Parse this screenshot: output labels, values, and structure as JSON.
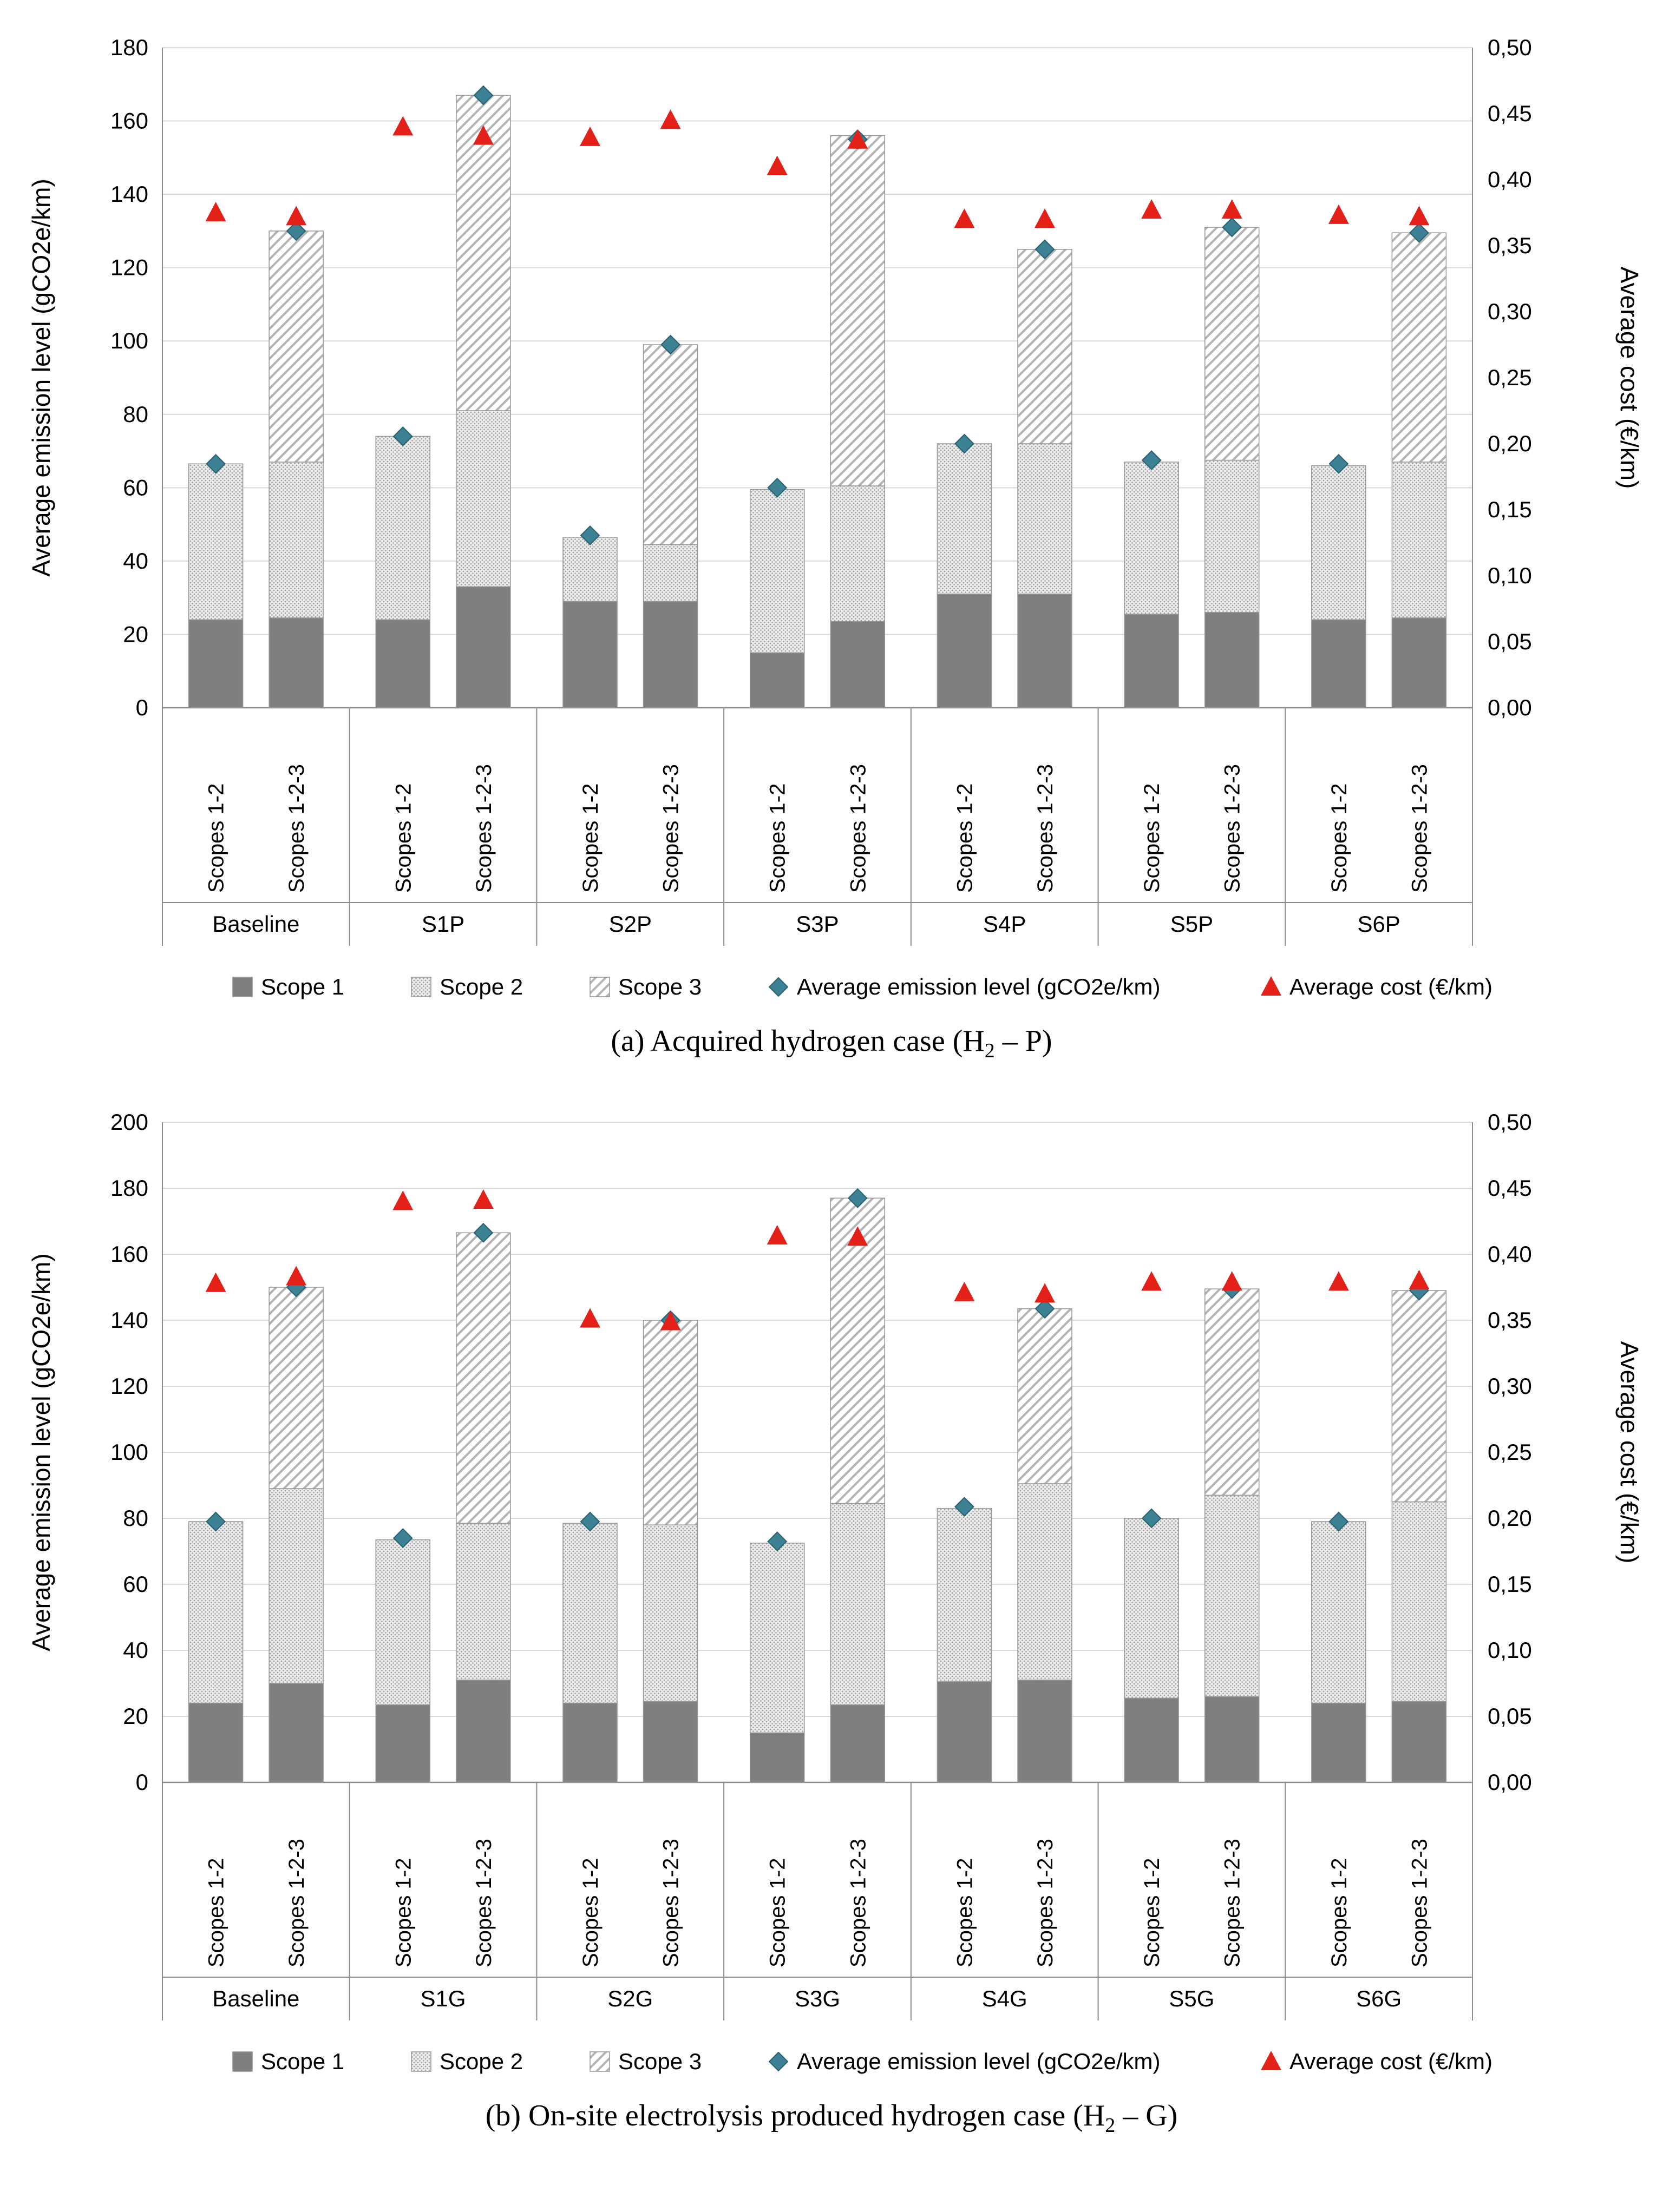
{
  "colors": {
    "scope1": "#7f7f7f",
    "scope2_base": "#ebebeb",
    "scope2_dot": "#9c9c9c",
    "scope3_base": "#ffffff",
    "scope3_hatch": "#b3b3b3",
    "bar_border": "#969696",
    "grid": "#d9d9d9",
    "axis": "#8c8c8c",
    "emission_marker": "#3d8194",
    "emission_marker_stroke": "#27616f",
    "cost_marker": "#e32119",
    "text": "#000000"
  },
  "chart_data": [
    {
      "type": "bar",
      "stacked": true,
      "caption": {
        "prefix": "(a) Acquired hydrogen case (H",
        "sub": "2",
        "suffix": " – P)"
      },
      "left_axis": {
        "label": "Average emission level (gCO2e/km)",
        "min": 0,
        "max": 180,
        "ticks": [
          "0",
          "20",
          "40",
          "60",
          "80",
          "100",
          "120",
          "140",
          "160",
          "180"
        ]
      },
      "right_axis": {
        "label": "Average cost (€/km)",
        "min": 0,
        "max": 0.5,
        "ticks": [
          "0,00",
          "0,05",
          "0,10",
          "0,15",
          "0,20",
          "0,25",
          "0,30",
          "0,35",
          "0,40",
          "0,45",
          "0,50"
        ]
      },
      "groups": [
        "Baseline",
        "S1P",
        "S2P",
        "S3P",
        "S4P",
        "S5P",
        "S6P"
      ],
      "bar_labels": [
        "Scopes 1-2",
        "Scopes 1-2-3"
      ],
      "legend": [
        "Scope 1",
        "Scope 2",
        "Scope 3",
        "Average emission level (gCO2e/km)",
        "Average cost (€/km)"
      ],
      "bars": [
        {
          "group": "Baseline",
          "label": "Scopes 1-2",
          "scope1": 24,
          "scope2": 42.5,
          "scope3": 0,
          "emission": 66.5,
          "cost": 0.375
        },
        {
          "group": "Baseline",
          "label": "Scopes 1-2-3",
          "scope1": 24.5,
          "scope2": 42.5,
          "scope3": 63,
          "emission": 130,
          "cost": 0.372
        },
        {
          "group": "S1P",
          "label": "Scopes 1-2",
          "scope1": 24,
          "scope2": 50,
          "scope3": 0,
          "emission": 74,
          "cost": 0.44
        },
        {
          "group": "S1P",
          "label": "Scopes 1-2-3",
          "scope1": 33,
          "scope2": 48,
          "scope3": 86,
          "emission": 167,
          "cost": 0.433
        },
        {
          "group": "S2P",
          "label": "Scopes 1-2",
          "scope1": 29,
          "scope2": 17.5,
          "scope3": 0,
          "emission": 47,
          "cost": 0.432
        },
        {
          "group": "S2P",
          "label": "Scopes 1-2-3",
          "scope1": 29,
          "scope2": 15.5,
          "scope3": 54.5,
          "emission": 99,
          "cost": 0.445
        },
        {
          "group": "S3P",
          "label": "Scopes 1-2",
          "scope1": 15,
          "scope2": 44.5,
          "scope3": 0,
          "emission": 60,
          "cost": 0.41
        },
        {
          "group": "S3P",
          "label": "Scopes 1-2-3",
          "scope1": 23.5,
          "scope2": 37,
          "scope3": 95.5,
          "emission": 155,
          "cost": 0.43
        },
        {
          "group": "S4P",
          "label": "Scopes 1-2",
          "scope1": 31,
          "scope2": 41,
          "scope3": 0,
          "emission": 72,
          "cost": 0.37
        },
        {
          "group": "S4P",
          "label": "Scopes 1-2-3",
          "scope1": 31,
          "scope2": 41,
          "scope3": 53,
          "emission": 125,
          "cost": 0.37
        },
        {
          "group": "S5P",
          "label": "Scopes 1-2",
          "scope1": 25.5,
          "scope2": 41.5,
          "scope3": 0,
          "emission": 67.5,
          "cost": 0.377
        },
        {
          "group": "S5P",
          "label": "Scopes 1-2-3",
          "scope1": 26,
          "scope2": 41.5,
          "scope3": 63.5,
          "emission": 131,
          "cost": 0.377
        },
        {
          "group": "S6P",
          "label": "Scopes 1-2",
          "scope1": 24,
          "scope2": 42,
          "scope3": 0,
          "emission": 66.5,
          "cost": 0.373
        },
        {
          "group": "S6P",
          "label": "Scopes 1-2-3",
          "scope1": 24.5,
          "scope2": 42.5,
          "scope3": 62.5,
          "emission": 129.5,
          "cost": 0.372
        }
      ]
    },
    {
      "type": "bar",
      "stacked": true,
      "caption": {
        "prefix": "(b) On-site electrolysis produced hydrogen case (H",
        "sub": "2",
        "suffix": " – G)"
      },
      "left_axis": {
        "label": "Average emission level (gCO2e/km)",
        "min": 0,
        "max": 200,
        "ticks": [
          "0",
          "20",
          "40",
          "60",
          "80",
          "100",
          "120",
          "140",
          "160",
          "180",
          "200"
        ]
      },
      "right_axis": {
        "label": "Average cost (€/km)",
        "min": 0,
        "max": 0.5,
        "ticks": [
          "0,00",
          "0,05",
          "0,10",
          "0,15",
          "0,20",
          "0,25",
          "0,30",
          "0,35",
          "0,40",
          "0,45",
          "0,50"
        ]
      },
      "groups": [
        "Baseline",
        "S1G",
        "S2G",
        "S3G",
        "S4G",
        "S5G",
        "S6G"
      ],
      "bar_labels": [
        "Scopes 1-2",
        "Scopes 1-2-3"
      ],
      "legend": [
        "Scope 1",
        "Scope 2",
        "Scope 3",
        "Average emission level (gCO2e/km)",
        "Average cost (€/km)"
      ],
      "bars": [
        {
          "group": "Baseline",
          "label": "Scopes 1-2",
          "scope1": 24,
          "scope2": 55,
          "scope3": 0,
          "emission": 79,
          "cost": 0.378
        },
        {
          "group": "Baseline",
          "label": "Scopes 1-2-3",
          "scope1": 30,
          "scope2": 59,
          "scope3": 61,
          "emission": 150,
          "cost": 0.383
        },
        {
          "group": "S1G",
          "label": "Scopes 1-2",
          "scope1": 23.5,
          "scope2": 50,
          "scope3": 0,
          "emission": 74,
          "cost": 0.44
        },
        {
          "group": "S1G",
          "label": "Scopes 1-2-3",
          "scope1": 31,
          "scope2": 47.5,
          "scope3": 88,
          "emission": 166.5,
          "cost": 0.441
        },
        {
          "group": "S2G",
          "label": "Scopes 1-2",
          "scope1": 24,
          "scope2": 54.5,
          "scope3": 0,
          "emission": 79,
          "cost": 0.351
        },
        {
          "group": "S2G",
          "label": "Scopes 1-2-3",
          "scope1": 24.5,
          "scope2": 53.5,
          "scope3": 62,
          "emission": 140,
          "cost": 0.349
        },
        {
          "group": "S3G",
          "label": "Scopes 1-2",
          "scope1": 15,
          "scope2": 57.5,
          "scope3": 0,
          "emission": 73,
          "cost": 0.414
        },
        {
          "group": "S3G",
          "label": "Scopes 1-2-3",
          "scope1": 23.5,
          "scope2": 61,
          "scope3": 92.5,
          "emission": 177,
          "cost": 0.413
        },
        {
          "group": "S4G",
          "label": "Scopes 1-2",
          "scope1": 30.5,
          "scope2": 52.5,
          "scope3": 0,
          "emission": 83.5,
          "cost": 0.371
        },
        {
          "group": "S4G",
          "label": "Scopes 1-2-3",
          "scope1": 31,
          "scope2": 59.5,
          "scope3": 53,
          "emission": 143.5,
          "cost": 0.37
        },
        {
          "group": "S5G",
          "label": "Scopes 1-2",
          "scope1": 25.5,
          "scope2": 54.5,
          "scope3": 0,
          "emission": 80,
          "cost": 0.379
        },
        {
          "group": "S5G",
          "label": "Scopes 1-2-3",
          "scope1": 26,
          "scope2": 61,
          "scope3": 62.5,
          "emission": 149.5,
          "cost": 0.379
        },
        {
          "group": "S6G",
          "label": "Scopes 1-2",
          "scope1": 24,
          "scope2": 55,
          "scope3": 0,
          "emission": 79,
          "cost": 0.379
        },
        {
          "group": "S6G",
          "label": "Scopes 1-2-3",
          "scope1": 24.5,
          "scope2": 60.5,
          "scope3": 64,
          "emission": 149,
          "cost": 0.38
        }
      ]
    }
  ]
}
